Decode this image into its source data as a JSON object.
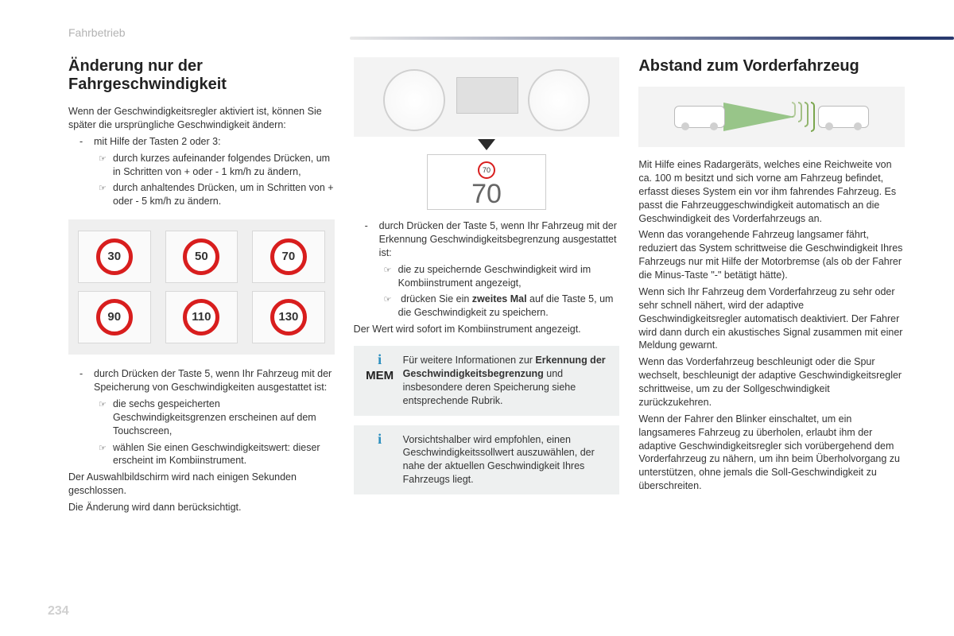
{
  "section_label": "Fahrbetrieb",
  "page_number": "234",
  "col1": {
    "heading_l1": "Änderung nur der",
    "heading_l2": "Fahrgeschwindigkeit",
    "p1": "Wenn der Geschwindigkeitsregler aktiviert ist, können Sie später die ursprüngliche Geschwindigkeit ändern:",
    "b1": "mit Hilfe der Tasten 2 oder 3:",
    "b1a": "durch kurzes aufeinander folgendes Drücken, um in Schritten von + oder - 1 km/h zu ändern,",
    "b1b": "durch anhaltendes Drücken, um in Schritten von + oder - 5 km/h zu ändern.",
    "signs": [
      "30",
      "50",
      "70",
      "90",
      "110",
      "130"
    ],
    "b2": "durch Drücken der Taste 5, wenn Ihr Fahrzeug mit der Speicherung von Geschwindigkeiten ausgestattet ist:",
    "b2a": "die sechs gespeicherten Geschwindigkeitsgrenzen erscheinen auf dem Touchscreen,",
    "b2b": "wählen Sie einen Geschwindigkeitswert: dieser erscheint im Kombiinstrument.",
    "p2": "Der Auswahlbildschirm wird nach einigen Sekunden geschlossen.",
    "p3": "Die Änderung wird dann berücksichtigt."
  },
  "col2": {
    "detected_mini": "70",
    "detected_big": "70",
    "b1": "durch Drücken der Taste 5, wenn Ihr Fahrzeug mit der Erkennung Geschwindigkeitsbegrenzung ausgestattet ist:",
    "b1a": "die zu speichernde Geschwindigkeit wird im Kombiinstrument angezeigt,",
    "b1b_pre": "drücken Sie ein ",
    "b1b_strong": "zweites Mal",
    "b1b_post": " auf die Taste 5, um die Geschwindigkeit zu speichern.",
    "p1": "Der Wert wird sofort im Kombiinstrument angezeigt.",
    "info1_badge": "MEM",
    "info1_pre": "Für weitere Informationen zur ",
    "info1_strong": "Erkennung der Geschwindigkeitsbegrenzung",
    "info1_post": " und insbesondere deren Speicherung siehe entsprechende Rubrik.",
    "info2": "Vorsichtshalber wird empfohlen, einen Geschwindigkeitssollwert auszuwählen, der nahe der aktuellen Geschwindigkeit Ihres Fahrzeugs liegt."
  },
  "col3": {
    "heading": "Abstand zum Vorderfahrzeug",
    "p1": "Mit Hilfe eines Radargeräts, welches eine Reichweite von ca. 100 m besitzt und sich vorne am Fahrzeug befindet, erfasst dieses System ein vor ihm fahrendes Fahrzeug. Es passt die Fahrzeuggeschwindigkeit automatisch an die Geschwindigkeit des Vorderfahrzeugs an.",
    "p2": "Wenn das vorangehende Fahrzeug langsamer fährt, reduziert das System schrittweise die Geschwindigkeit Ihres Fahrzeugs nur mit Hilfe der Motorbremse (als ob der Fahrer die Minus-Taste \"-\" betätigt hätte).",
    "p3": "Wenn sich Ihr Fahrzeug dem Vorderfahrzeug zu sehr oder sehr schnell nähert, wird der adaptive Geschwindigkeitsregler automatisch deaktiviert. Der Fahrer wird dann durch ein akustisches Signal zusammen mit einer Meldung gewarnt.",
    "p4": "Wenn das Vorderfahrzeug beschleunigt oder die Spur wechselt, beschleunigt der adaptive Geschwindigkeitsregler schrittweise, um zu der Sollgeschwindigkeit zurückzukehren.",
    "p5": "Wenn der Fahrer den Blinker einschaltet, um ein langsameres Fahrzeug zu überholen, erlaubt ihm der adaptive Geschwindigkeitsregler sich vorübergehend dem Vorderfahrzeug zu nähern, um ihn beim Überholvorgang zu unterstützen, ohne jemals die Soll-Geschwindigkeit zu überschreiten."
  }
}
